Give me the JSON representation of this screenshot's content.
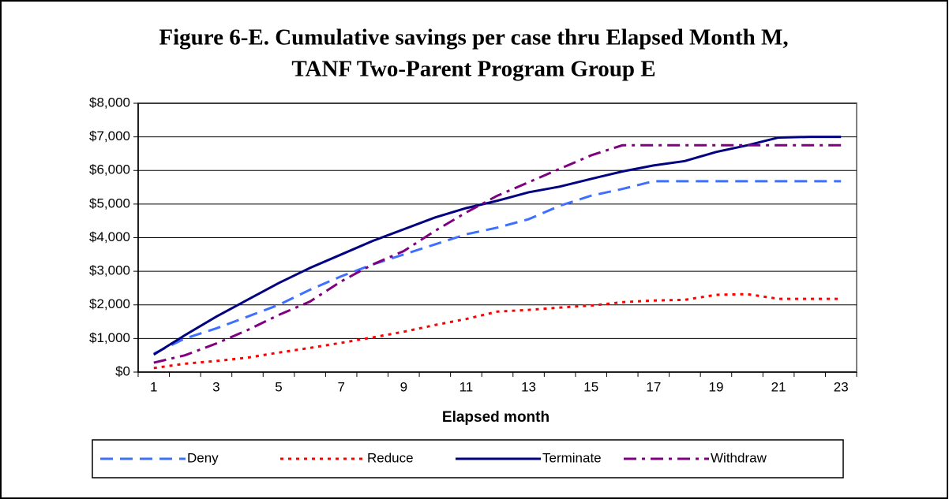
{
  "chart_data": {
    "type": "line",
    "title": [
      "Figure 6-E.  Cumulative savings per case thru Elapsed Month M,",
      "TANF Two-Parent Program Group E"
    ],
    "x_label": "Elapsed month",
    "categories": [
      1,
      null,
      3,
      null,
      5,
      null,
      7,
      null,
      9,
      null,
      11,
      null,
      13,
      null,
      15,
      null,
      17,
      null,
      19,
      null,
      21,
      null,
      23
    ],
    "ylim": [
      0,
      8000
    ],
    "yticks": [
      {
        "value": 0,
        "label": "$0"
      },
      {
        "value": 1000,
        "label": "$1,000"
      },
      {
        "value": 2000,
        "label": "$2,000"
      },
      {
        "value": 3000,
        "label": "$3,000"
      },
      {
        "value": 4000,
        "label": "$4,000"
      },
      {
        "value": 5000,
        "label": "$5,000"
      },
      {
        "value": 6000,
        "label": "$6,000"
      },
      {
        "value": 7000,
        "label": "$7,000"
      },
      {
        "value": 8000,
        "label": "$8,000"
      }
    ],
    "grid": true,
    "legend": "bottom",
    "series": [
      {
        "name": "Deny",
        "color": "#3f6fff",
        "style": "dashed",
        "values": [
          550,
          1000,
          1300,
          1650,
          2000,
          2450,
          2850,
          3200,
          3500,
          3800,
          4100,
          4300,
          4550,
          4950,
          5250,
          5450,
          5680,
          5680,
          5680,
          5680,
          5680,
          5680,
          5680
        ]
      },
      {
        "name": "Reduce",
        "color": "#ff0000",
        "style": "dotted",
        "values": [
          120,
          250,
          330,
          430,
          580,
          720,
          870,
          1030,
          1200,
          1400,
          1580,
          1800,
          1850,
          1920,
          1980,
          2080,
          2130,
          2150,
          2300,
          2320,
          2180,
          2180,
          2180
        ]
      },
      {
        "name": "Terminate",
        "color": "#000080",
        "style": "solid",
        "values": [
          520,
          1100,
          1650,
          2150,
          2650,
          3100,
          3500,
          3900,
          4250,
          4600,
          4880,
          5100,
          5350,
          5520,
          5750,
          5970,
          6150,
          6280,
          6550,
          6750,
          6980,
          7000,
          7000
        ]
      },
      {
        "name": "Withdraw",
        "color": "#800080",
        "style": "dashdot",
        "values": [
          280,
          500,
          850,
          1250,
          1700,
          2100,
          2700,
          3200,
          3600,
          4200,
          4750,
          5250,
          5650,
          6050,
          6450,
          6750,
          6750,
          6750,
          6750,
          6750,
          6750,
          6750,
          6750
        ]
      }
    ]
  }
}
